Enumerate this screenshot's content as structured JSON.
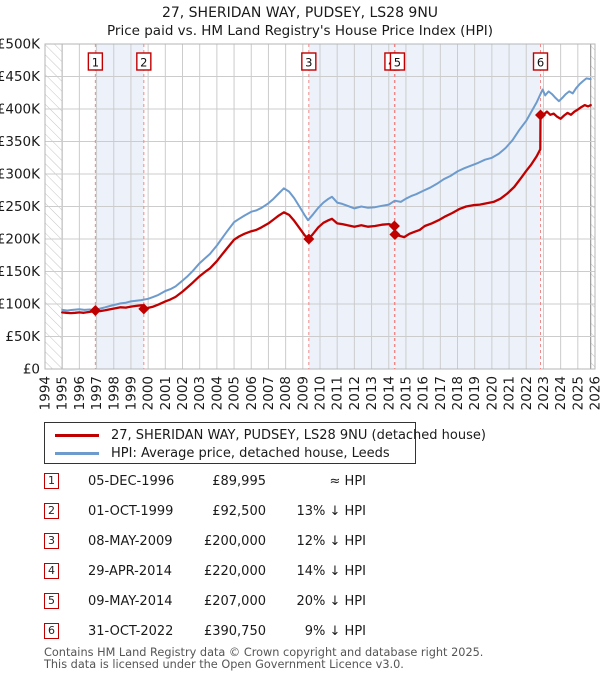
{
  "title": "27, SHERIDAN WAY, PUDSEY, LS28 9NU",
  "subtitle": "Price paid vs. HM Land Registry's House Price Index (HPI)",
  "colors": {
    "price_line": "#c00000",
    "hpi_line": "#6e9bcd",
    "band": "#edf2fa",
    "grid": "#cccccc",
    "plot_border": "#b5b5b5",
    "sale_dash": "#ee8888",
    "hatch": "#c4c4c4",
    "hatch_edge": "#888888",
    "axis_text": "#1a1a1a",
    "box_border": "#c00000",
    "box_text": "#111111"
  },
  "chart_data": {
    "type": "line",
    "title": "Price paid vs. HM Land Registry's House Price Index (HPI)",
    "x_axis": {
      "min": 1994,
      "max": 2026,
      "tick_step": 1,
      "tick_labels": [
        "1994",
        "1995",
        "1996",
        "1997",
        "1998",
        "1999",
        "2000",
        "2001",
        "2002",
        "2003",
        "2004",
        "2005",
        "2006",
        "2007",
        "2008",
        "2009",
        "2010",
        "2011",
        "2012",
        "2013",
        "2014",
        "2015",
        "2016",
        "2017",
        "2018",
        "2019",
        "2020",
        "2021",
        "2022",
        "2023",
        "2024",
        "2025",
        "2026"
      ]
    },
    "y_axis": {
      "min": 0,
      "max": 500,
      "unit": "£K",
      "tick_step": 50,
      "tick_labels": [
        "£0",
        "£50K",
        "£100K",
        "£150K",
        "£200K",
        "£250K",
        "£300K",
        "£350K",
        "£400K",
        "£450K",
        "£500K"
      ]
    },
    "data_range_years": [
      1995.0,
      2025.75
    ],
    "grid": true,
    "legend_position": "below",
    "series": [
      {
        "name": "27, SHERIDAN WAY, PUDSEY, LS28 9NU (detached house)",
        "color": "#c00000",
        "points_year_priceK": [
          [
            1995.0,
            87
          ],
          [
            1995.25,
            86.5
          ],
          [
            1995.5,
            86
          ],
          [
            1995.75,
            86.5
          ],
          [
            1996.0,
            87
          ],
          [
            1996.25,
            86.5
          ],
          [
            1996.5,
            87.5
          ],
          [
            1996.75,
            88.5
          ],
          [
            1996.93,
            90
          ],
          [
            1997.2,
            89
          ],
          [
            1997.5,
            90.5
          ],
          [
            1997.8,
            92
          ],
          [
            1998.1,
            93.5
          ],
          [
            1998.4,
            95
          ],
          [
            1998.7,
            94.5
          ],
          [
            1999.0,
            96
          ],
          [
            1999.3,
            97
          ],
          [
            1999.6,
            98
          ],
          [
            1999.74,
            98
          ],
          [
            1999.75,
            92.5
          ],
          [
            2000.0,
            94
          ],
          [
            2000.3,
            96
          ],
          [
            2000.6,
            99
          ],
          [
            2001.0,
            104
          ],
          [
            2001.3,
            107
          ],
          [
            2001.6,
            111
          ],
          [
            2002.0,
            119
          ],
          [
            2002.3,
            126
          ],
          [
            2002.6,
            133
          ],
          [
            2003.0,
            143
          ],
          [
            2003.3,
            149
          ],
          [
            2003.6,
            155
          ],
          [
            2004.0,
            166
          ],
          [
            2004.3,
            176
          ],
          [
            2004.6,
            186
          ],
          [
            2005.0,
            199
          ],
          [
            2005.3,
            204
          ],
          [
            2005.6,
            208
          ],
          [
            2006.0,
            212
          ],
          [
            2006.3,
            214
          ],
          [
            2006.6,
            218
          ],
          [
            2007.0,
            224
          ],
          [
            2007.3,
            230
          ],
          [
            2007.6,
            236
          ],
          [
            2007.9,
            241
          ],
          [
            2008.2,
            237
          ],
          [
            2008.5,
            228
          ],
          [
            2008.8,
            217
          ],
          [
            2009.1,
            206
          ],
          [
            2009.35,
            200
          ],
          [
            2009.6,
            208
          ],
          [
            2009.9,
            218
          ],
          [
            2010.2,
            225
          ],
          [
            2010.5,
            229
          ],
          [
            2010.7,
            231
          ],
          [
            2011.0,
            224
          ],
          [
            2011.3,
            223
          ],
          [
            2011.6,
            221
          ],
          [
            2012.0,
            219
          ],
          [
            2012.4,
            221
          ],
          [
            2012.8,
            219
          ],
          [
            2013.2,
            220
          ],
          [
            2013.6,
            222
          ],
          [
            2014.0,
            223
          ],
          [
            2014.33,
            220
          ],
          [
            2014.36,
            207
          ],
          [
            2014.6,
            205
          ],
          [
            2014.9,
            203
          ],
          [
            2015.2,
            208
          ],
          [
            2015.5,
            211
          ],
          [
            2015.8,
            214
          ],
          [
            2016.1,
            220
          ],
          [
            2016.5,
            224
          ],
          [
            2016.9,
            229
          ],
          [
            2017.3,
            235
          ],
          [
            2017.7,
            240
          ],
          [
            2018.1,
            246
          ],
          [
            2018.5,
            250
          ],
          [
            2018.9,
            252
          ],
          [
            2019.3,
            253
          ],
          [
            2019.7,
            255
          ],
          [
            2020.1,
            257
          ],
          [
            2020.5,
            262
          ],
          [
            2020.9,
            270
          ],
          [
            2021.3,
            280
          ],
          [
            2021.7,
            294
          ],
          [
            2022.0,
            305
          ],
          [
            2022.3,
            315
          ],
          [
            2022.6,
            327
          ],
          [
            2022.82,
            338
          ],
          [
            2022.83,
            390.75
          ],
          [
            2023.0,
            391
          ],
          [
            2023.2,
            396
          ],
          [
            2023.4,
            391
          ],
          [
            2023.6,
            393
          ],
          [
            2023.8,
            388
          ],
          [
            2024.0,
            385
          ],
          [
            2024.2,
            390
          ],
          [
            2024.4,
            394
          ],
          [
            2024.6,
            391
          ],
          [
            2024.8,
            396
          ],
          [
            2025.0,
            399
          ],
          [
            2025.2,
            403
          ],
          [
            2025.4,
            406
          ],
          [
            2025.6,
            404
          ],
          [
            2025.75,
            406
          ]
        ]
      },
      {
        "name": "HPI: Average price, detached house, Leeds",
        "color": "#6e9bcd",
        "points_year_priceK": [
          [
            1995.0,
            91
          ],
          [
            1995.3,
            90
          ],
          [
            1995.6,
            91
          ],
          [
            1996.0,
            92
          ],
          [
            1996.3,
            91
          ],
          [
            1996.6,
            91.5
          ],
          [
            1996.93,
            90.5
          ],
          [
            1997.2,
            93
          ],
          [
            1997.5,
            95
          ],
          [
            1997.8,
            97
          ],
          [
            1998.1,
            99
          ],
          [
            1998.4,
            101
          ],
          [
            1998.7,
            102
          ],
          [
            1999.0,
            104
          ],
          [
            1999.3,
            105
          ],
          [
            1999.6,
            106
          ],
          [
            2000.0,
            108
          ],
          [
            2000.3,
            111
          ],
          [
            2000.6,
            114
          ],
          [
            2001.0,
            120
          ],
          [
            2001.3,
            123
          ],
          [
            2001.6,
            127
          ],
          [
            2002.0,
            136
          ],
          [
            2002.3,
            143
          ],
          [
            2002.6,
            151
          ],
          [
            2003.0,
            163
          ],
          [
            2003.3,
            170
          ],
          [
            2003.6,
            177
          ],
          [
            2004.0,
            190
          ],
          [
            2004.3,
            201
          ],
          [
            2004.6,
            212
          ],
          [
            2005.0,
            226
          ],
          [
            2005.3,
            231
          ],
          [
            2005.6,
            236
          ],
          [
            2006.0,
            242
          ],
          [
            2006.3,
            244
          ],
          [
            2006.6,
            248
          ],
          [
            2007.0,
            255
          ],
          [
            2007.3,
            262
          ],
          [
            2007.6,
            270
          ],
          [
            2007.9,
            278
          ],
          [
            2008.2,
            273
          ],
          [
            2008.5,
            263
          ],
          [
            2008.8,
            250
          ],
          [
            2009.1,
            237
          ],
          [
            2009.3,
            229
          ],
          [
            2009.6,
            238
          ],
          [
            2009.9,
            248
          ],
          [
            2010.2,
            256
          ],
          [
            2010.5,
            262
          ],
          [
            2010.7,
            265
          ],
          [
            2011.0,
            256
          ],
          [
            2011.3,
            254
          ],
          [
            2011.6,
            251
          ],
          [
            2012.0,
            247
          ],
          [
            2012.4,
            250
          ],
          [
            2012.8,
            248
          ],
          [
            2013.2,
            249
          ],
          [
            2013.6,
            251
          ],
          [
            2014.0,
            253
          ],
          [
            2014.35,
            259
          ],
          [
            2014.7,
            257
          ],
          [
            2015.0,
            262
          ],
          [
            2015.3,
            266
          ],
          [
            2015.6,
            269
          ],
          [
            2016.0,
            274
          ],
          [
            2016.4,
            279
          ],
          [
            2016.8,
            285
          ],
          [
            2017.2,
            292
          ],
          [
            2017.6,
            297
          ],
          [
            2018.0,
            304
          ],
          [
            2018.4,
            309
          ],
          [
            2018.8,
            313
          ],
          [
            2019.2,
            317
          ],
          [
            2019.6,
            322
          ],
          [
            2020.0,
            325
          ],
          [
            2020.4,
            331
          ],
          [
            2020.8,
            340
          ],
          [
            2021.2,
            352
          ],
          [
            2021.6,
            368
          ],
          [
            2022.0,
            382
          ],
          [
            2022.3,
            396
          ],
          [
            2022.6,
            410
          ],
          [
            2022.83,
            423
          ],
          [
            2022.95,
            430
          ],
          [
            2023.1,
            421
          ],
          [
            2023.3,
            427
          ],
          [
            2023.5,
            423
          ],
          [
            2023.7,
            417
          ],
          [
            2023.9,
            412
          ],
          [
            2024.1,
            417
          ],
          [
            2024.3,
            423
          ],
          [
            2024.5,
            427
          ],
          [
            2024.7,
            424
          ],
          [
            2024.9,
            432
          ],
          [
            2025.1,
            438
          ],
          [
            2025.3,
            443
          ],
          [
            2025.5,
            447
          ],
          [
            2025.75,
            446
          ]
        ]
      }
    ],
    "sales": [
      {
        "n": "1",
        "year": 1996.93,
        "priceK": 90
      },
      {
        "n": "2",
        "year": 1999.75,
        "priceK": 92.5
      },
      {
        "n": "3",
        "year": 2009.35,
        "priceK": 200
      },
      {
        "n": "4",
        "year": 2014.33,
        "priceK": 220
      },
      {
        "n": "5",
        "year": 2014.36,
        "priceK": 207
      },
      {
        "n": "6",
        "year": 2022.83,
        "priceK": 390.75
      }
    ],
    "shaded_periods": [
      [
        1996.93,
        1999.75
      ],
      [
        2009.35,
        2014.33
      ],
      [
        2014.36,
        2022.83
      ]
    ]
  },
  "legend": {
    "items": [
      {
        "label": "27, SHERIDAN WAY, PUDSEY, LS28 9NU (detached house)",
        "color": "#c00000"
      },
      {
        "label": "HPI: Average price, detached house, Leeds",
        "color": "#6e9bcd"
      }
    ]
  },
  "transactions": [
    {
      "num": "1",
      "date": "05-DEC-1996",
      "price": "£89,995",
      "hpi": "≈ HPI"
    },
    {
      "num": "2",
      "date": "01-OCT-1999",
      "price": "£92,500",
      "hpi": "13% ↓ HPI"
    },
    {
      "num": "3",
      "date": "08-MAY-2009",
      "price": "£200,000",
      "hpi": "12% ↓ HPI"
    },
    {
      "num": "4",
      "date": "29-APR-2014",
      "price": "£220,000",
      "hpi": "14% ↓ HPI"
    },
    {
      "num": "5",
      "date": "09-MAY-2014",
      "price": "£207,000",
      "hpi": "20% ↓ HPI"
    },
    {
      "num": "6",
      "date": "31-OCT-2022",
      "price": "£390,750",
      "hpi": "9% ↓ HPI"
    }
  ],
  "footer": {
    "line1": "Contains HM Land Registry data © Crown copyright and database right 2025.",
    "line2": "This data is licensed under the Open Government Licence v3.0."
  }
}
